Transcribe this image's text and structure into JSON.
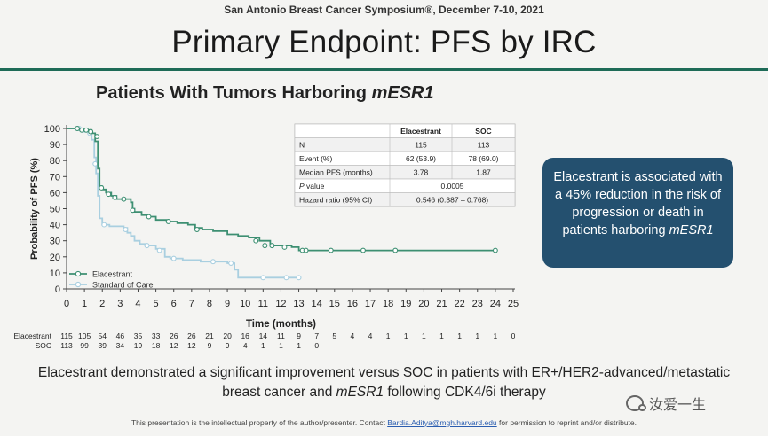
{
  "header": {
    "symposium": "San Antonio Breast Cancer Symposium®, December 7-10, 2021",
    "title": "Primary Endpoint: PFS by IRC"
  },
  "chart_title_prefix": "Patients With Tumors Harboring ",
  "chart_title_emph": "mESR1",
  "chart_data": {
    "type": "line",
    "subtype": "kaplan-meier",
    "xlabel": "Time (months)",
    "ylabel": "Probability of PFS (%)",
    "xlim": [
      0,
      25
    ],
    "ylim": [
      0,
      100
    ],
    "xticks": [
      0,
      1,
      2,
      3,
      4,
      5,
      6,
      7,
      8,
      9,
      10,
      11,
      12,
      13,
      14,
      15,
      16,
      17,
      18,
      19,
      20,
      21,
      22,
      23,
      24,
      25
    ],
    "yticks": [
      0,
      10,
      20,
      30,
      40,
      50,
      60,
      70,
      80,
      90,
      100
    ],
    "legend_position": "bottom-left",
    "series": [
      {
        "name": "Elacestrant",
        "color": "#3d8f72",
        "points": [
          [
            0,
            100
          ],
          [
            0.5,
            100
          ],
          [
            0.9,
            99
          ],
          [
            1.2,
            99
          ],
          [
            1.4,
            97
          ],
          [
            1.6,
            92
          ],
          [
            1.75,
            75
          ],
          [
            1.85,
            64
          ],
          [
            2.0,
            62
          ],
          [
            2.2,
            60
          ],
          [
            2.5,
            58
          ],
          [
            2.8,
            56
          ],
          [
            3.3,
            56
          ],
          [
            3.6,
            54
          ],
          [
            3.7,
            50
          ],
          [
            3.8,
            48
          ],
          [
            4.2,
            46
          ],
          [
            4.6,
            45
          ],
          [
            5.0,
            43
          ],
          [
            5.6,
            42
          ],
          [
            6.2,
            41
          ],
          [
            6.8,
            40
          ],
          [
            7.2,
            38
          ],
          [
            7.6,
            37
          ],
          [
            8.2,
            36
          ],
          [
            9.0,
            34
          ],
          [
            9.6,
            33
          ],
          [
            10.2,
            32
          ],
          [
            10.8,
            30
          ],
          [
            11.4,
            27
          ],
          [
            12.6,
            26
          ],
          [
            13.0,
            24
          ],
          [
            16.5,
            24
          ],
          [
            18.4,
            24
          ],
          [
            24.0,
            24
          ]
        ],
        "censors": [
          [
            0.6,
            100
          ],
          [
            0.85,
            99
          ],
          [
            1.1,
            99
          ],
          [
            1.35,
            98
          ],
          [
            1.7,
            95
          ],
          [
            1.95,
            63
          ],
          [
            2.35,
            59
          ],
          [
            2.7,
            57
          ],
          [
            3.2,
            56
          ],
          [
            3.7,
            49
          ],
          [
            4.6,
            45
          ],
          [
            5.7,
            42
          ],
          [
            7.3,
            37
          ],
          [
            10.6,
            30
          ],
          [
            11.1,
            27
          ],
          [
            11.5,
            27
          ],
          [
            12.2,
            26
          ],
          [
            13.2,
            24
          ],
          [
            13.4,
            24
          ],
          [
            14.8,
            24
          ],
          [
            16.6,
            24
          ],
          [
            18.4,
            24
          ],
          [
            24.0,
            24
          ]
        ]
      },
      {
        "name": "Standard of Care",
        "color": "#a9cfe0",
        "points": [
          [
            0,
            100
          ],
          [
            0.6,
            100
          ],
          [
            0.9,
            99
          ],
          [
            1.2,
            98
          ],
          [
            1.4,
            93
          ],
          [
            1.55,
            82
          ],
          [
            1.65,
            72
          ],
          [
            1.75,
            58
          ],
          [
            1.85,
            44
          ],
          [
            2.0,
            40
          ],
          [
            2.4,
            39
          ],
          [
            3.2,
            38
          ],
          [
            3.4,
            35
          ],
          [
            3.6,
            33
          ],
          [
            3.8,
            30
          ],
          [
            4.1,
            28
          ],
          [
            4.4,
            27
          ],
          [
            5.0,
            25
          ],
          [
            5.5,
            20
          ],
          [
            5.8,
            19
          ],
          [
            6.5,
            18
          ],
          [
            7.5,
            17
          ],
          [
            8.2,
            17
          ],
          [
            9.0,
            16
          ],
          [
            9.4,
            12
          ],
          [
            9.6,
            7
          ],
          [
            13.0,
            7
          ]
        ],
        "censors": [
          [
            0.7,
            100
          ],
          [
            1.0,
            99
          ],
          [
            1.3,
            97
          ],
          [
            1.6,
            78
          ],
          [
            2.1,
            40
          ],
          [
            3.3,
            37
          ],
          [
            4.5,
            27
          ],
          [
            5.2,
            24
          ],
          [
            6.0,
            19
          ],
          [
            8.2,
            17
          ],
          [
            9.2,
            16
          ],
          [
            11.0,
            7
          ],
          [
            12.3,
            7
          ],
          [
            13.0,
            7
          ]
        ]
      }
    ],
    "risk_table": {
      "times": [
        0,
        1,
        2,
        3,
        4,
        5,
        6,
        7,
        8,
        9,
        10,
        11,
        12,
        13,
        14,
        15,
        16,
        17,
        18,
        19,
        20,
        21,
        22,
        23,
        24,
        25
      ],
      "rows": [
        {
          "label": "Elacestrant",
          "values": [
            "115",
            "105",
            "54",
            "46",
            "35",
            "33",
            "26",
            "26",
            "21",
            "20",
            "16",
            "14",
            "11",
            "9",
            "7",
            "5",
            "4",
            "4",
            "1",
            "1",
            "1",
            "1",
            "1",
            "1",
            "1",
            "0"
          ]
        },
        {
          "label": "SOC",
          "values": [
            "113",
            "99",
            "39",
            "34",
            "19",
            "18",
            "12",
            "12",
            "9",
            "9",
            "4",
            "1",
            "1",
            "1",
            "0"
          ]
        }
      ]
    },
    "stats_table": {
      "headers": [
        "",
        "Elacestrant",
        "SOC"
      ],
      "rows": [
        [
          "N",
          "115",
          "113"
        ],
        [
          "Event (%)",
          "62 (53.9)",
          "78 (69.0)"
        ],
        [
          "Median PFS (months)",
          "3.78",
          "1.87"
        ],
        [
          "P value",
          "0.0005"
        ],
        [
          "Hazard ratio (95% CI)",
          "0.546 (0.387 – 0.768)"
        ]
      ]
    }
  },
  "callout": {
    "text": "Elacestrant is associated with a 45% reduction in the risk of progression or death in patients harboring ",
    "emph": "mESR1"
  },
  "conclusion": {
    "part1": "Elacestrant demonstrated a significant improvement versus SOC in patients with ER+/HER2-advanced/metastatic breast cancer and ",
    "emph": "mESR1",
    "part2": " following CDK4/6i therapy"
  },
  "footer": {
    "text_before": "This presentation is the intellectual property of the author/presenter. Contact ",
    "email": "Bardia.Aditya@mgh.harvard.edu",
    "text_after": " for permission to reprint and/or distribute."
  },
  "watermark": "汝爱一生"
}
